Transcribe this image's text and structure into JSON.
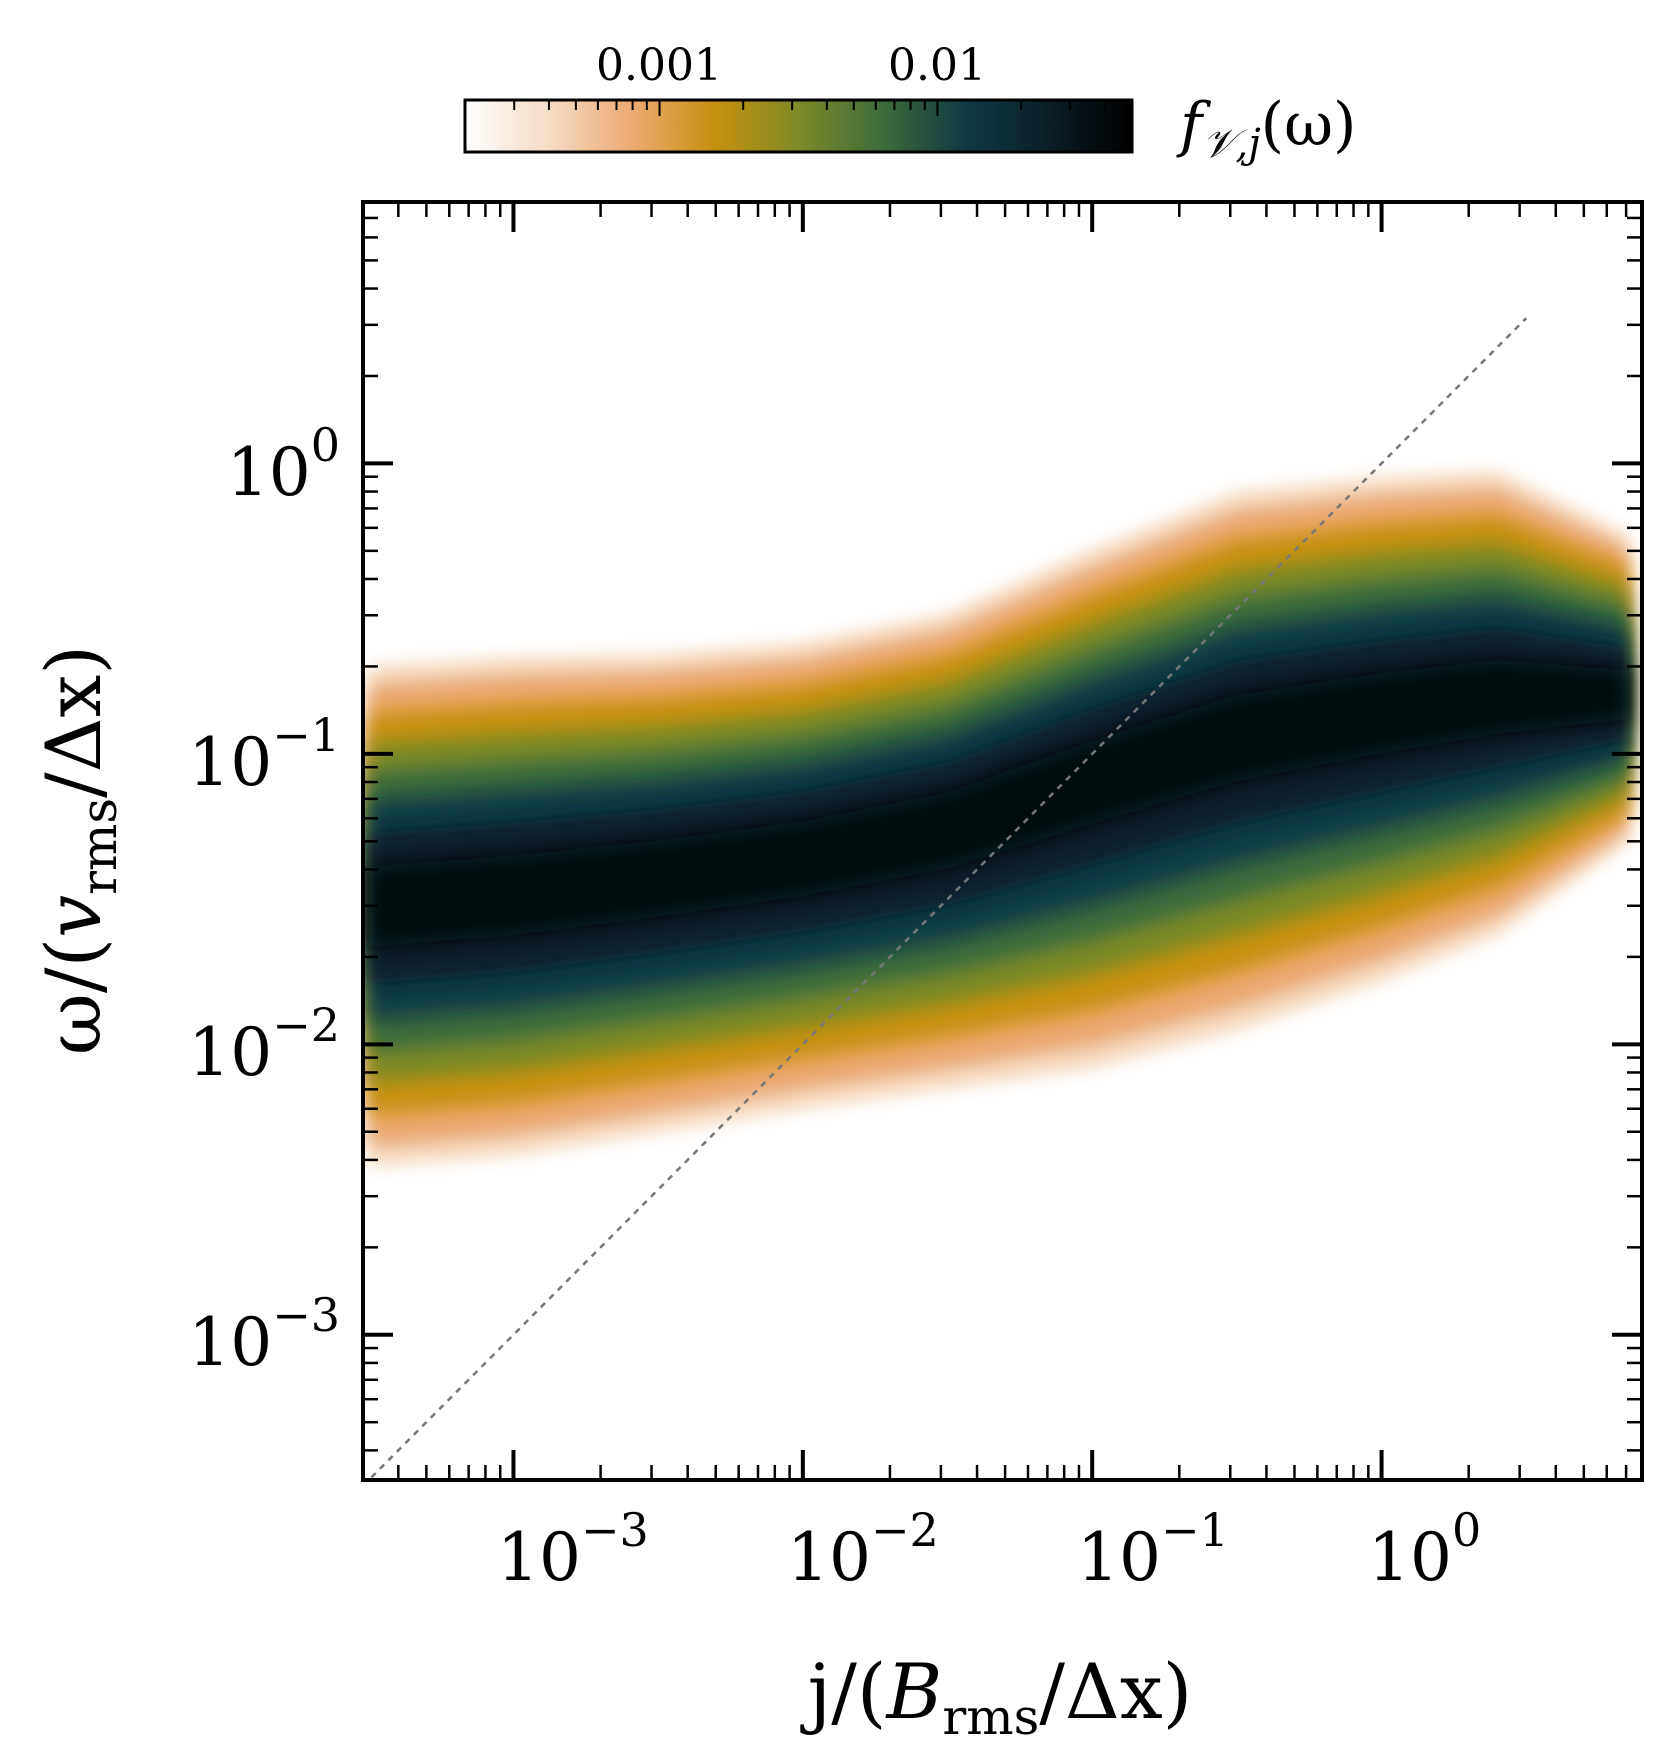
{
  "chart_data": {
    "type": "heatmap",
    "title": "",
    "xlabel": "j/(B_rms/Δx)",
    "ylabel": "ω/(v_rms/Δx)",
    "xlabel_parts": {
      "pre": "j/(",
      "var": "B",
      "sub": "rms",
      "post": "/Δx)"
    },
    "ylabel_parts": {
      "pre": "ω/(",
      "var": "v",
      "sub": "rms",
      "post": "/Δx)"
    },
    "xscale": "log",
    "yscale": "log",
    "xlim_log10": [
      -3.52,
      0.9
    ],
    "ylim_log10": [
      -3.5,
      0.9
    ],
    "x_ticks": [
      {
        "log10": -3,
        "base": "10",
        "exp": "−3"
      },
      {
        "log10": -2,
        "base": "10",
        "exp": "−2"
      },
      {
        "log10": -1,
        "base": "10",
        "exp": "−1"
      },
      {
        "log10": 0,
        "base": "10",
        "exp": "0"
      }
    ],
    "y_ticks": [
      {
        "log10": -3,
        "base": "10",
        "exp": "−3"
      },
      {
        "log10": -2,
        "base": "10",
        "exp": "−2"
      },
      {
        "log10": -1,
        "base": "10",
        "exp": "−1"
      },
      {
        "log10": 0,
        "base": "10",
        "exp": "0"
      }
    ],
    "ridge": [
      {
        "log10_j": -3.5,
        "log10_w_center": -1.52,
        "log10_w_upper": -0.7,
        "log10_w_lower": -2.42
      },
      {
        "log10_j": -3.0,
        "log10_w_center": -1.48,
        "log10_w_upper": -0.67,
        "log10_w_lower": -2.38
      },
      {
        "log10_j": -2.5,
        "log10_w_center": -1.42,
        "log10_w_upper": -0.66,
        "log10_w_lower": -2.3
      },
      {
        "log10_j": -2.0,
        "log10_w_center": -1.35,
        "log10_w_upper": -0.62,
        "log10_w_lower": -2.22
      },
      {
        "log10_j": -1.5,
        "log10_w_center": -1.25,
        "log10_w_upper": -0.52,
        "log10_w_lower": -2.15
      },
      {
        "log10_j": -1.0,
        "log10_w_center": -1.08,
        "log10_w_upper": -0.3,
        "log10_w_lower": -2.08
      },
      {
        "log10_j": -0.5,
        "log10_w_center": -0.93,
        "log10_w_upper": -0.1,
        "log10_w_lower": -1.95
      },
      {
        "log10_j": 0.0,
        "log10_w_center": -0.85,
        "log10_w_upper": -0.05,
        "log10_w_lower": -1.78
      },
      {
        "log10_j": 0.4,
        "log10_w_center": -0.8,
        "log10_w_upper": -0.03,
        "log10_w_lower": -1.62
      },
      {
        "log10_j": 0.85,
        "log10_w_center": -0.8,
        "log10_w_upper": -0.25,
        "log10_w_lower": -1.3
      }
    ],
    "reference_line": {
      "style": "dashed",
      "color": "#777777",
      "slope_log": 1.0,
      "intercept_log": 0.0
    },
    "colorbar": {
      "label": "f_{V,j}(ω)",
      "label_parts": {
        "f": "f",
        "sub": "𝒱,j",
        "arg": "(ω)"
      },
      "scale": "log",
      "range_log10": [
        -3.7,
        -1.3
      ],
      "ticks": [
        {
          "log10": -3,
          "label": "0.001"
        },
        {
          "log10": -2,
          "label": "0.01"
        }
      ],
      "colormap": [
        "#ffffff",
        "#f5dcc6",
        "#eda972",
        "#c6900e",
        "#7d8a27",
        "#3f6b3c",
        "#0e3a43",
        "#0b1d26",
        "#000000"
      ]
    }
  }
}
